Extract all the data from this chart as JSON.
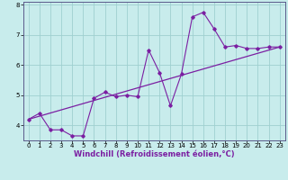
{
  "xlabel": "Windchill (Refroidissement éolien,°C)",
  "bg_color": "#c8ecec",
  "line_color": "#7b1fa2",
  "grid_color": "#9fd0d0",
  "spine_color": "#5a5a8a",
  "x_data": [
    0,
    1,
    2,
    3,
    4,
    5,
    6,
    7,
    8,
    9,
    10,
    11,
    12,
    13,
    14,
    15,
    16,
    17,
    18,
    19,
    20,
    21,
    22,
    23
  ],
  "y_data": [
    4.2,
    4.4,
    3.85,
    3.85,
    3.65,
    3.65,
    4.9,
    5.1,
    4.95,
    5.0,
    4.95,
    6.5,
    5.75,
    4.65,
    5.7,
    7.6,
    7.75,
    7.2,
    6.6,
    6.65,
    6.55,
    6.55,
    6.6,
    6.6
  ],
  "trend_x": [
    0,
    23
  ],
  "trend_y": [
    4.2,
    6.6
  ],
  "xlim": [
    -0.5,
    23.5
  ],
  "ylim": [
    3.5,
    8.1
  ],
  "yticks": [
    4,
    5,
    6,
    7,
    8
  ],
  "xticks": [
    0,
    1,
    2,
    3,
    4,
    5,
    6,
    7,
    8,
    9,
    10,
    11,
    12,
    13,
    14,
    15,
    16,
    17,
    18,
    19,
    20,
    21,
    22,
    23
  ],
  "axis_fontsize": 5.5,
  "tick_fontsize": 5.0,
  "xlabel_fontsize": 6.0
}
